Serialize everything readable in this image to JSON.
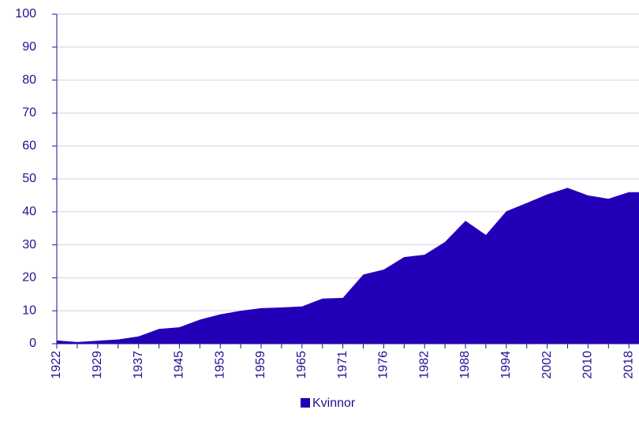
{
  "chart_data": {
    "type": "area",
    "categories": [
      "1922",
      null,
      "1929",
      null,
      "1937",
      null,
      "1945",
      null,
      "1953",
      null,
      "1959",
      null,
      "1965",
      null,
      "1971",
      null,
      "1976",
      null,
      "1982",
      null,
      "1988",
      null,
      "1994",
      null,
      "2002",
      null,
      "2010",
      null,
      "2018",
      null
    ],
    "series": [
      {
        "name": "Kvinnor",
        "color": "#2300b8",
        "values": [
          1,
          0.5,
          0.9,
          1.3,
          2.2,
          4.5,
          5,
          7.3,
          8.9,
          10,
          10.8,
          11,
          11.3,
          13.7,
          13.9,
          21,
          22.5,
          26.3,
          27,
          30.9,
          37.3,
          33,
          40.2,
          42.7,
          45.3,
          47.3,
          45,
          44,
          46,
          46
        ]
      }
    ],
    "ylim": [
      0,
      100
    ],
    "yticks": [
      0,
      10,
      20,
      30,
      40,
      50,
      60,
      70,
      80,
      90,
      100
    ],
    "grid": true,
    "legend": "bottom"
  }
}
